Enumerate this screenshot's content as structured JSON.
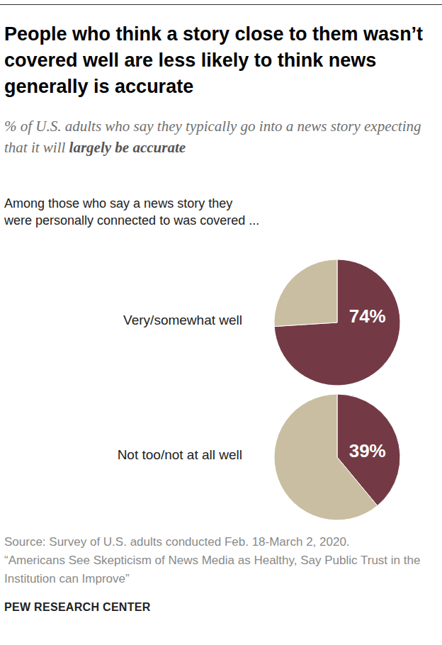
{
  "chart_data": {
    "type": "pie",
    "title": "People who think a story close to them wasn’t covered well are less likely to think news generally is accurate",
    "subtitle": "% of U.S. adults who say they typically go into a news story expecting that it will",
    "subtitle_emphasis": "largely be accurate",
    "intro": "Among those who say a news story they were personally connected to was covered ...",
    "pies": [
      {
        "label": "Very/somewhat well",
        "values": [
          74,
          26
        ],
        "value_labels": [
          "74%",
          null
        ]
      },
      {
        "label": "Not too/not at all well",
        "values": [
          39,
          61
        ],
        "value_labels": [
          "39%",
          null
        ]
      }
    ],
    "colors": [
      "#733a46",
      "#c9bea1"
    ],
    "data_labels": true,
    "source": [
      "Source: Survey of U.S. adults conducted Feb. 18-March 2, 2020.",
      "“Americans See Skepticism of News Media as Healthy, Say Public Trust in the Institution can Improve”"
    ],
    "credit": "PEW RESEARCH CENTER"
  }
}
